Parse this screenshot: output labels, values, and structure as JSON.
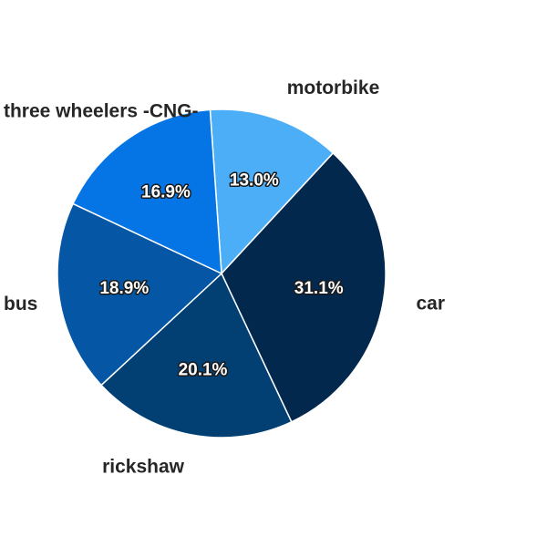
{
  "chart_data": {
    "type": "pie",
    "title": "",
    "start_angle_deg": 94,
    "direction": "clockwise",
    "legend": "none",
    "slices": [
      {
        "label": "motorbike",
        "pct_label": "13.0%",
        "value": 13.0,
        "color": "#4daef8"
      },
      {
        "label": "car",
        "pct_label": "31.1%",
        "value": 31.1,
        "color": "#03284d"
      },
      {
        "label": "rickshaw",
        "pct_label": "20.1%",
        "value": 20.1,
        "color": "#023f73"
      },
      {
        "label": "bus",
        "pct_label": "18.9%",
        "value": 18.9,
        "color": "#0557a6"
      },
      {
        "label": "three wheelers -CNG-",
        "pct_label": "16.9%",
        "value": 16.9,
        "color": "#0575e6"
      }
    ]
  }
}
